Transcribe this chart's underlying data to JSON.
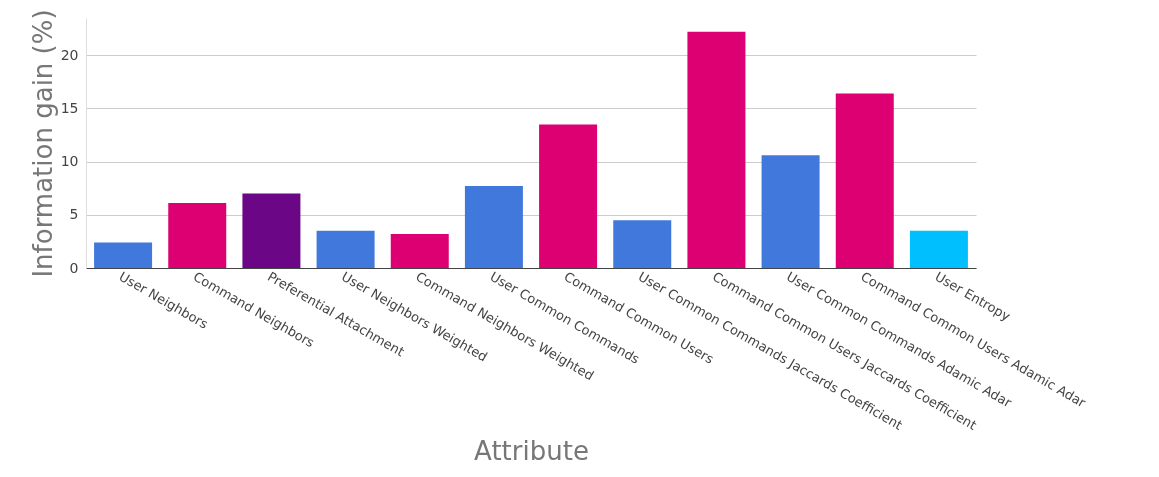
{
  "chart_data": {
    "type": "bar",
    "xlabel": "Attribute",
    "ylabel": "Information gain (%)",
    "categories": [
      "User Neighbors",
      "Command Neighbors",
      "Preferential Attachment",
      "User Neighbors Weighted",
      "Command Neighbors Weighted",
      "User Common Commands",
      "Command Common Users",
      "User Common Commands Jaccards Coefficient",
      "Command Common Users Jaccards Coefficient",
      "User Common Commands Adamic Adar",
      "Command Common Users Adamic Adar",
      "User Entropy"
    ],
    "values": [
      2.4,
      6.1,
      7.0,
      3.5,
      3.2,
      7.7,
      13.5,
      4.5,
      22.2,
      10.6,
      16.4,
      3.5
    ],
    "colors": [
      "#4178dc",
      "#dc0073",
      "#6b0787",
      "#4178dc",
      "#dc0073",
      "#4178dc",
      "#dc0073",
      "#4178dc",
      "#dc0073",
      "#4178dc",
      "#dc0073",
      "#00bfff"
    ],
    "ylim": [
      0,
      23.5
    ],
    "yticks": [
      0,
      5,
      10,
      15,
      20
    ],
    "grid": "y"
  }
}
